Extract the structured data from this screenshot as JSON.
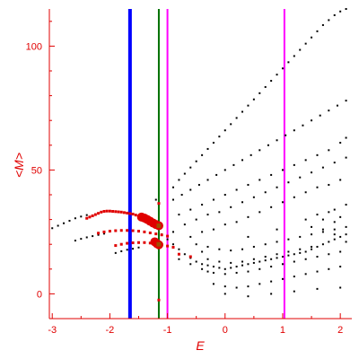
{
  "chart_data": {
    "type": "scatter",
    "xlabel": "E",
    "ylabel": "<M>",
    "xlim": [
      -3.05,
      2.2
    ],
    "ylim": [
      -10,
      115
    ],
    "x_ticks": [
      -3,
      -2,
      -1,
      0,
      1,
      2
    ],
    "y_ticks": [
      0,
      50,
      100
    ],
    "x_tick_labels": [
      "-3",
      "-2",
      "-1",
      "0",
      "1",
      "2"
    ],
    "y_tick_labels": [
      "0",
      "50",
      "100"
    ],
    "grid": false,
    "axis_color": "#e00000",
    "vertical_lines": [
      {
        "x": -1.65,
        "color": "#0000ff",
        "style": "thick"
      },
      {
        "x": -1.15,
        "color": "#007000",
        "style": "medium"
      },
      {
        "x": -1.0,
        "color": "#ff00ff",
        "style": "thin"
      },
      {
        "x": 1.03,
        "color": "#ff00ff",
        "style": "thin"
      }
    ],
    "series": [
      {
        "color": "#000000",
        "marker": "dot",
        "points": [
          [
            -3.0,
            26.5
          ],
          [
            -2.9,
            27.5
          ],
          [
            -2.8,
            28.5
          ],
          [
            -2.7,
            29.5
          ],
          [
            -2.6,
            30.5
          ],
          [
            -2.5,
            31.2
          ],
          [
            -2.4,
            31.8
          ],
          [
            -2.6,
            21.5
          ],
          [
            -2.5,
            22.2
          ],
          [
            -2.4,
            22.8
          ],
          [
            -2.3,
            23.3
          ],
          [
            -2.2,
            23.8
          ],
          [
            -2.1,
            24.3
          ],
          [
            -1.9,
            16.5
          ],
          [
            -1.8,
            17.2
          ],
          [
            -1.7,
            17.8
          ],
          [
            -1.6,
            18.2
          ],
          [
            -1.5,
            18.7
          ],
          [
            -0.9,
            43
          ],
          [
            -0.8,
            46
          ],
          [
            -0.7,
            48.5
          ],
          [
            -0.6,
            51
          ],
          [
            -0.5,
            53.5
          ],
          [
            -0.4,
            56
          ],
          [
            -0.3,
            58.5
          ],
          [
            -0.2,
            61
          ],
          [
            -0.1,
            63.5
          ],
          [
            0.0,
            66
          ],
          [
            0.1,
            68.5
          ],
          [
            0.2,
            71
          ],
          [
            0.3,
            73.5
          ],
          [
            0.4,
            76
          ],
          [
            0.5,
            78.5
          ],
          [
            0.6,
            81
          ],
          [
            0.7,
            83.5
          ],
          [
            0.8,
            86
          ],
          [
            0.9,
            88.5
          ],
          [
            1.0,
            91
          ],
          [
            1.1,
            93.5
          ],
          [
            1.2,
            96
          ],
          [
            1.3,
            98.5
          ],
          [
            1.4,
            101
          ],
          [
            1.5,
            103.5
          ],
          [
            1.6,
            106
          ],
          [
            1.7,
            108.5
          ],
          [
            1.8,
            110.5
          ],
          [
            1.9,
            112.5
          ],
          [
            2.0,
            114
          ],
          [
            2.1,
            115
          ],
          [
            -0.9,
            38
          ],
          [
            -0.75,
            40
          ],
          [
            -0.6,
            42
          ],
          [
            -0.45,
            44
          ],
          [
            -0.3,
            46
          ],
          [
            -0.15,
            48
          ],
          [
            0.0,
            50
          ],
          [
            0.15,
            52
          ],
          [
            0.3,
            54
          ],
          [
            0.45,
            56
          ],
          [
            0.6,
            58
          ],
          [
            0.75,
            60
          ],
          [
            0.9,
            62
          ],
          [
            1.05,
            64
          ],
          [
            1.2,
            66
          ],
          [
            1.35,
            68
          ],
          [
            1.5,
            70
          ],
          [
            1.65,
            72
          ],
          [
            1.8,
            74
          ],
          [
            1.95,
            76
          ],
          [
            2.1,
            78
          ],
          [
            -0.8,
            32
          ],
          [
            -0.6,
            34
          ],
          [
            -0.4,
            36
          ],
          [
            -0.2,
            38
          ],
          [
            0.0,
            40
          ],
          [
            0.2,
            42
          ],
          [
            0.4,
            44
          ],
          [
            0.6,
            46
          ],
          [
            0.8,
            48
          ],
          [
            1.0,
            50
          ],
          [
            1.2,
            52
          ],
          [
            1.4,
            54
          ],
          [
            1.6,
            56
          ],
          [
            1.8,
            58
          ],
          [
            2.0,
            61
          ],
          [
            2.1,
            63
          ],
          [
            -0.7,
            28
          ],
          [
            -0.5,
            30
          ],
          [
            -0.3,
            32
          ],
          [
            -0.1,
            33
          ],
          [
            0.1,
            35
          ],
          [
            0.3,
            37
          ],
          [
            0.5,
            39
          ],
          [
            0.7,
            41
          ],
          [
            0.9,
            43
          ],
          [
            1.1,
            45
          ],
          [
            1.3,
            47
          ],
          [
            1.5,
            49
          ],
          [
            1.7,
            51
          ],
          [
            1.9,
            53
          ],
          [
            2.1,
            55
          ],
          [
            -0.6,
            23
          ],
          [
            -0.4,
            25
          ],
          [
            -0.2,
            26
          ],
          [
            0.0,
            28
          ],
          [
            0.2,
            29
          ],
          [
            0.4,
            31
          ],
          [
            0.6,
            33
          ],
          [
            0.8,
            35
          ],
          [
            1.0,
            37
          ],
          [
            1.2,
            39
          ],
          [
            1.4,
            41
          ],
          [
            1.6,
            43
          ],
          [
            1.8,
            44
          ],
          [
            2.0,
            46
          ],
          [
            -1.1,
            24
          ],
          [
            -1.0,
            22
          ],
          [
            -0.9,
            20
          ],
          [
            -0.8,
            18
          ],
          [
            -0.7,
            16
          ],
          [
            -0.6,
            14.5
          ],
          [
            -0.5,
            13
          ],
          [
            -0.4,
            12
          ],
          [
            -0.3,
            11.5
          ],
          [
            -0.2,
            11
          ],
          [
            -0.1,
            10.5
          ],
          [
            0.0,
            10
          ],
          [
            0.1,
            10.5
          ],
          [
            0.2,
            11
          ],
          [
            0.3,
            11.5
          ],
          [
            0.4,
            12
          ],
          [
            0.5,
            12.5
          ],
          [
            0.6,
            13
          ],
          [
            0.7,
            13.5
          ],
          [
            0.8,
            14
          ],
          [
            0.9,
            14.5
          ],
          [
            1.0,
            15
          ],
          [
            1.1,
            15.5
          ],
          [
            1.2,
            16
          ],
          [
            1.3,
            16.5
          ],
          [
            1.4,
            17
          ],
          [
            1.5,
            18
          ],
          [
            1.6,
            19
          ],
          [
            1.7,
            20
          ],
          [
            1.8,
            21
          ],
          [
            1.9,
            22
          ],
          [
            2.0,
            23
          ],
          [
            2.1,
            24
          ],
          [
            -0.8,
            14
          ],
          [
            -0.6,
            12
          ],
          [
            -0.4,
            10
          ],
          [
            -0.3,
            9
          ],
          [
            -0.2,
            8.5
          ],
          [
            0.0,
            8
          ],
          [
            0.2,
            8.5
          ],
          [
            0.4,
            9
          ],
          [
            0.6,
            10
          ],
          [
            0.8,
            11
          ],
          [
            1.0,
            12
          ],
          [
            1.2,
            13
          ],
          [
            1.4,
            14
          ],
          [
            1.6,
            15
          ],
          [
            1.8,
            16
          ],
          [
            2.0,
            17
          ],
          [
            -0.3,
            14
          ],
          [
            -0.1,
            13
          ],
          [
            0.1,
            12.5
          ],
          [
            0.3,
            13
          ],
          [
            0.5,
            14
          ],
          [
            0.7,
            15
          ],
          [
            0.9,
            16
          ],
          [
            1.1,
            17
          ],
          [
            1.3,
            18
          ],
          [
            1.5,
            19
          ],
          [
            -0.5,
            20
          ],
          [
            -0.3,
            19
          ],
          [
            -0.1,
            18
          ],
          [
            0.1,
            17.5
          ],
          [
            0.3,
            18
          ],
          [
            0.5,
            19
          ],
          [
            0.7,
            20
          ],
          [
            0.9,
            21
          ],
          [
            1.1,
            22
          ],
          [
            1.3,
            23
          ],
          [
            1.5,
            24
          ],
          [
            1.7,
            25
          ],
          [
            1.9,
            26
          ],
          [
            2.1,
            27
          ],
          [
            -0.2,
            4
          ],
          [
            0.0,
            3
          ],
          [
            0.2,
            2.5
          ],
          [
            0.4,
            3
          ],
          [
            0.6,
            4
          ],
          [
            0.8,
            5
          ],
          [
            1.0,
            6
          ],
          [
            1.2,
            7
          ],
          [
            1.4,
            8
          ],
          [
            1.6,
            9
          ],
          [
            1.8,
            10
          ],
          [
            2.0,
            11
          ],
          [
            0.0,
            0
          ],
          [
            0.4,
            -1
          ],
          [
            0.8,
            0
          ],
          [
            1.2,
            1
          ],
          [
            1.6,
            2
          ],
          [
            2.0,
            2.5
          ],
          [
            -1.2,
            38
          ],
          [
            -0.9,
            25
          ],
          [
            -0.4,
            17
          ],
          [
            0.4,
            23
          ],
          [
            0.9,
            26
          ],
          [
            1.4,
            30
          ],
          [
            1.9,
            34
          ],
          [
            1.6,
            32
          ],
          [
            1.7,
            30
          ],
          [
            1.8,
            33
          ],
          [
            1.9,
            29
          ],
          [
            2.0,
            31
          ],
          [
            2.1,
            36
          ],
          [
            1.5,
            27
          ],
          [
            1.7,
            26
          ],
          [
            1.9,
            24
          ],
          [
            2.1,
            21
          ]
        ]
      },
      {
        "color": "#e00000",
        "marker": "square",
        "points": [
          [
            -2.4,
            30.5
          ],
          [
            -2.35,
            31
          ],
          [
            -2.3,
            31.5
          ],
          [
            -2.25,
            32
          ],
          [
            -2.2,
            32.5
          ],
          [
            -2.15,
            33
          ],
          [
            -2.1,
            33.3
          ],
          [
            -2.05,
            33.4
          ],
          [
            -2.0,
            33.4
          ],
          [
            -1.95,
            33.3
          ],
          [
            -1.9,
            33.2
          ],
          [
            -1.85,
            33.1
          ],
          [
            -1.8,
            33
          ],
          [
            -1.75,
            32.8
          ],
          [
            -1.7,
            32.6
          ],
          [
            -1.65,
            32.4
          ],
          [
            -1.6,
            32.2
          ],
          [
            -1.55,
            31.8
          ],
          [
            -1.5,
            31.3
          ],
          [
            -1.45,
            30.8
          ],
          [
            -1.4,
            30.2
          ],
          [
            -1.35,
            29.6
          ],
          [
            -1.3,
            29.0
          ],
          [
            -1.25,
            28.5
          ],
          [
            -1.2,
            28.0
          ],
          [
            -2.2,
            24.5
          ],
          [
            -2.1,
            25.0
          ],
          [
            -2.0,
            25.3
          ],
          [
            -1.9,
            25.5
          ],
          [
            -1.8,
            25.6
          ],
          [
            -1.7,
            25.6
          ],
          [
            -1.6,
            25.5
          ],
          [
            -1.5,
            25.3
          ],
          [
            -1.4,
            25.0
          ],
          [
            -1.3,
            24.6
          ],
          [
            -1.2,
            24.2
          ],
          [
            -1.1,
            23.8
          ],
          [
            -1.0,
            23.3
          ],
          [
            -1.9,
            19.5
          ],
          [
            -1.8,
            20.0
          ],
          [
            -1.7,
            20.4
          ],
          [
            -1.6,
            20.6
          ],
          [
            -1.5,
            20.7
          ],
          [
            -1.4,
            20.7
          ],
          [
            -1.3,
            20.5
          ],
          [
            -1.2,
            20.2
          ],
          [
            -1.1,
            19.8
          ],
          [
            -1.0,
            19.3
          ],
          [
            -0.9,
            18.8
          ],
          [
            -1.15,
            36.5
          ],
          [
            -1.15,
            -2.5
          ],
          [
            -0.8,
            16
          ],
          [
            -0.6,
            15
          ]
        ]
      },
      {
        "color": "#e00000",
        "marker": "large-circle",
        "points": [
          [
            -1.45,
            31.0
          ],
          [
            -1.4,
            30.6
          ],
          [
            -1.35,
            30.0
          ],
          [
            -1.3,
            29.3
          ],
          [
            -1.25,
            28.6
          ],
          [
            -1.2,
            28.0
          ],
          [
            -1.15,
            27.5
          ],
          [
            -1.22,
            21.0
          ],
          [
            -1.18,
            20.2
          ],
          [
            -1.15,
            19.8
          ]
        ]
      },
      {
        "color": "#a05000",
        "marker": "marker",
        "points": [
          [
            -1.15,
            27.5
          ],
          [
            -1.15,
            20.0
          ]
        ]
      }
    ]
  }
}
